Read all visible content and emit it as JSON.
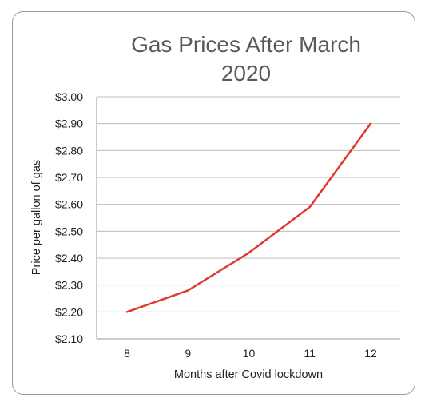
{
  "chart_data": {
    "type": "line",
    "title_lines": [
      "Gas Prices After March",
      "2020"
    ],
    "xlabel": "Months after Covid lockdown",
    "ylabel": "Price per gallon of gas",
    "categories": [
      "8",
      "9",
      "10",
      "11",
      "12"
    ],
    "series": [
      {
        "values": [
          2.2,
          2.28,
          2.42,
          2.59,
          2.9
        ],
        "color": "#e03a2f"
      }
    ],
    "ylim": [
      2.1,
      3.0
    ],
    "ytick_values": [
      2.1,
      2.2,
      2.3,
      2.4,
      2.5,
      2.6,
      2.7,
      2.8,
      2.9,
      3.0
    ],
    "ytick_labels": [
      "$2.10",
      "$2.20",
      "$2.30",
      "$2.40",
      "$2.50",
      "$2.60",
      "$2.70",
      "$2.80",
      "$2.90",
      "$3.00"
    ],
    "grid": true,
    "legend": "none"
  }
}
